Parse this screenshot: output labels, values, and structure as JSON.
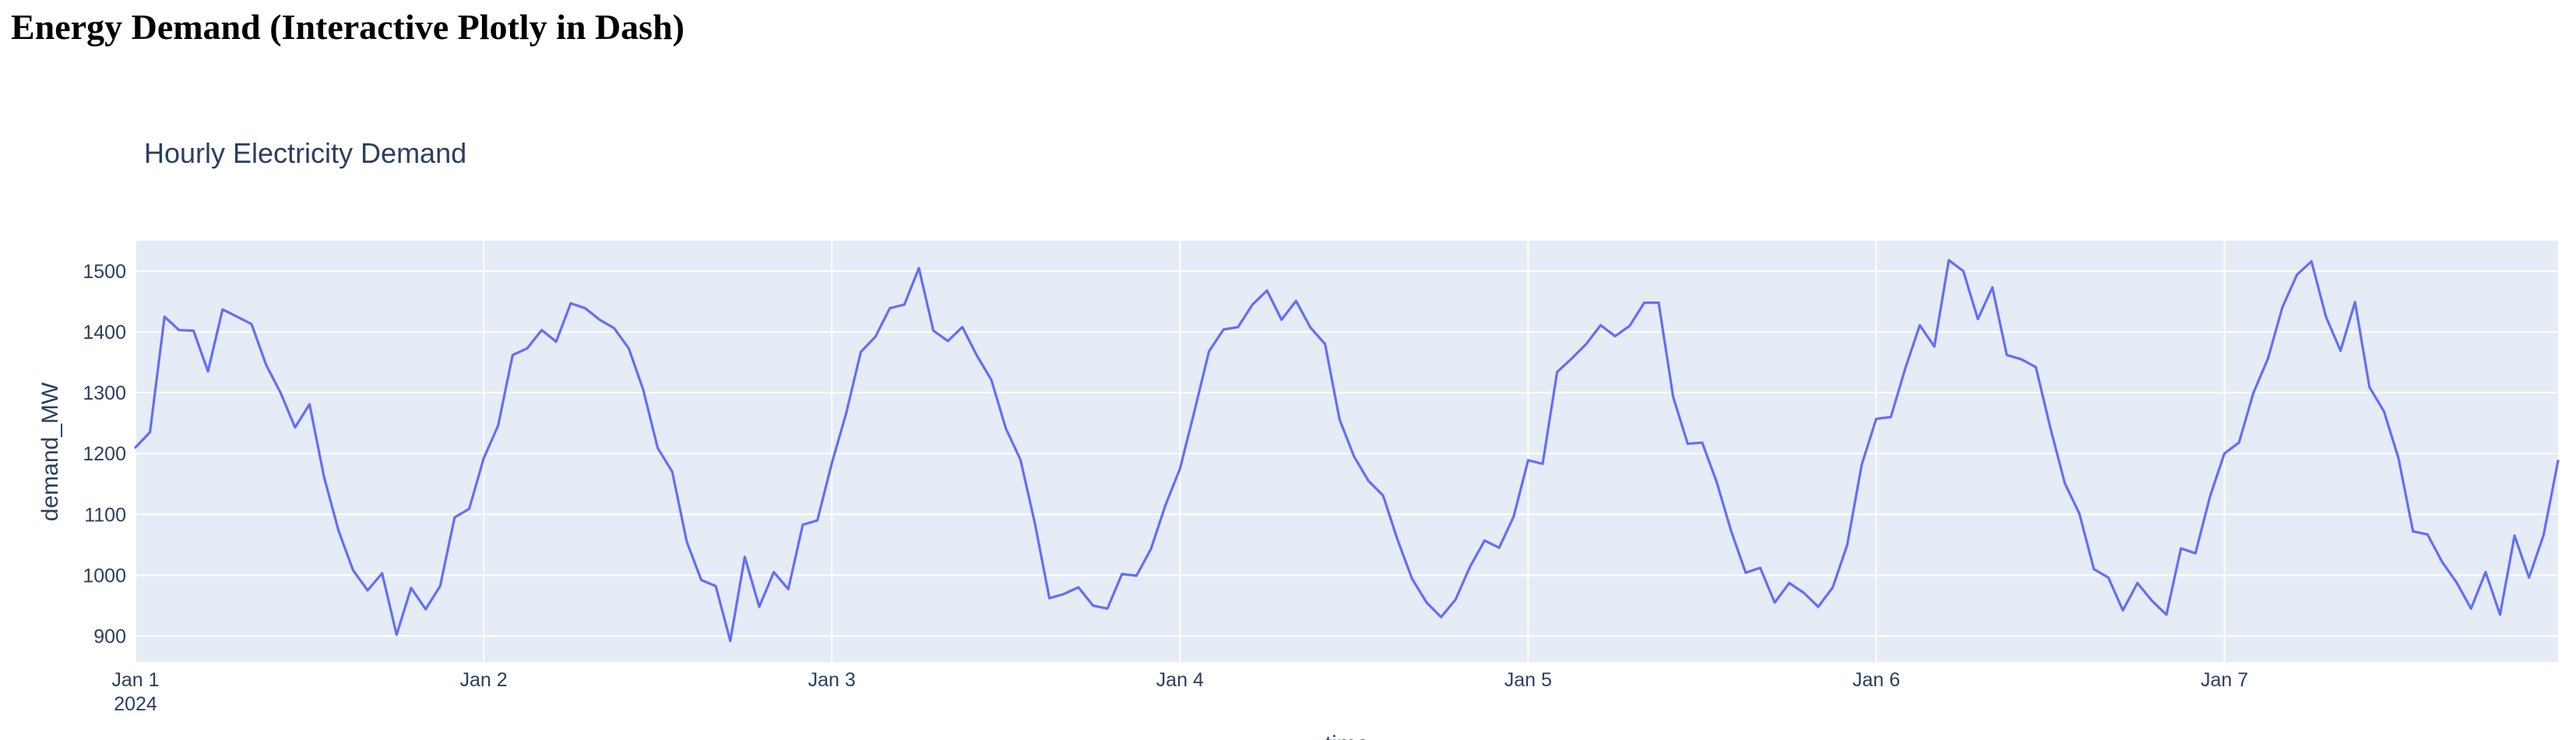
{
  "page": {
    "heading": "Energy Demand (Interactive Plotly in Dash)"
  },
  "colors": {
    "plot_background": "#E5ECF6",
    "grid": "#FFFFFF",
    "line": "#636EFA",
    "text": "#2a3f5f"
  },
  "chart_data": {
    "type": "line",
    "title": "Hourly Electricity Demand",
    "xlabel": "time",
    "ylabel": "demand_MW",
    "x_start": "2024-01-01 00:00",
    "x_step": "1 hour",
    "x_ticks": [
      {
        "label": "Jan 1",
        "sublabel": "2024",
        "hour": 0
      },
      {
        "label": "Jan 2",
        "sublabel": "",
        "hour": 24
      },
      {
        "label": "Jan 3",
        "sublabel": "",
        "hour": 48
      },
      {
        "label": "Jan 4",
        "sublabel": "",
        "hour": 72
      },
      {
        "label": "Jan 5",
        "sublabel": "",
        "hour": 96
      },
      {
        "label": "Jan 6",
        "sublabel": "",
        "hour": 120
      },
      {
        "label": "Jan 7",
        "sublabel": "",
        "hour": 144
      }
    ],
    "xlim_hours": [
      0,
      167
    ],
    "y_ticks": [
      900,
      1000,
      1100,
      1200,
      1300,
      1400,
      1500
    ],
    "ylim": [
      857,
      1550
    ],
    "grid": true,
    "series": [
      {
        "values": [
          1210,
          1235,
          1425,
          1403,
          1402,
          1335,
          1437,
          1425,
          1413,
          1346,
          1300,
          1243,
          1281,
          1161,
          1073,
          1008,
          975,
          1003,
          902,
          979,
          944,
          982,
          1095,
          1109,
          1192,
          1246,
          1362,
          1373,
          1403,
          1384,
          1447,
          1439,
          1420,
          1406,
          1373,
          1305,
          1209,
          1170,
          1055,
          992,
          982,
          892,
          1030,
          948,
          1005,
          977,
          1083,
          1090,
          1184,
          1267,
          1367,
          1392,
          1439,
          1445,
          1505,
          1402,
          1385,
          1408,
          1361,
          1321,
          1241,
          1190,
          1085,
          962,
          969,
          980,
          950,
          945,
          1002,
          999,
          1043,
          1115,
          1175,
          1270,
          1368,
          1404,
          1408,
          1445,
          1468,
          1420,
          1451,
          1407,
          1380,
          1256,
          1195,
          1155,
          1131,
          1058,
          994,
          955,
          931,
          960,
          1014,
          1057,
          1045,
          1096,
          1189,
          1183,
          1334,
          1356,
          1380,
          1411,
          1393,
          1410,
          1448,
          1448,
          1293,
          1216,
          1218,
          1153,
          1072,
          1004,
          1012,
          955,
          987,
          971,
          948,
          980,
          1050,
          1182,
          1257,
          1260,
          1340,
          1411,
          1376,
          1518,
          1500,
          1421,
          1473,
          1362,
          1355,
          1342,
          1242,
          1151,
          1101,
          1010,
          996,
          942,
          987,
          958,
          935,
          1044,
          1036,
          1129,
          1200,
          1218,
          1300,
          1356,
          1441,
          1494,
          1516,
          1425,
          1369,
          1449,
          1309,
          1269,
          1192,
          1072,
          1067,
          1022,
          988,
          945,
          1005,
          935,
          1065,
          996,
          1066,
          1188
        ]
      }
    ]
  }
}
